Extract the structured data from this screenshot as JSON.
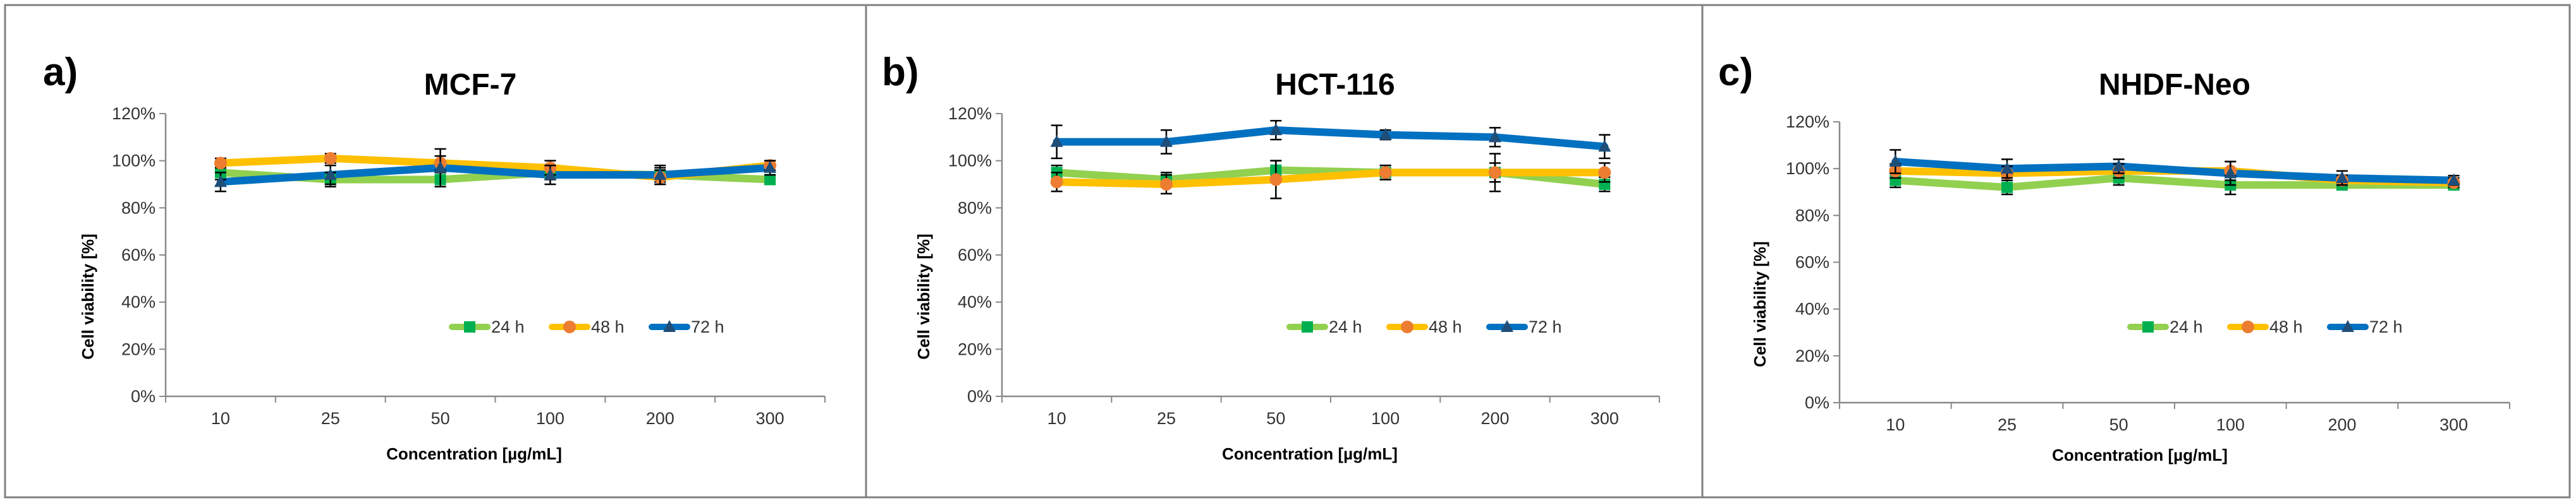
{
  "colors": {
    "24 h": "#92D050",
    "48 h": "#FFC000",
    "72 h": "#0070C0",
    "marker_24 h": "#00B050",
    "marker_48 h": "#ED7D31",
    "marker_72 h": "#1F4E79"
  },
  "chart_data": [
    {
      "panel": "a)",
      "type": "line",
      "title": "MCF-7",
      "xlabel": "Concentration [µg/mL]",
      "ylabel": "Cell viability [%]",
      "categories": [
        "10",
        "25",
        "50",
        "100",
        "200",
        "300"
      ],
      "ylim": [
        0,
        120
      ],
      "yticks": [
        0,
        20,
        40,
        60,
        80,
        100,
        120
      ],
      "ytick_labels": [
        "0%",
        "20%",
        "40%",
        "60%",
        "80%",
        "100%",
        "120%"
      ],
      "grid": false,
      "legend": "bottom-right",
      "series": [
        {
          "name": "24 h",
          "marker": "square",
          "values": [
            95,
            92,
            92,
            95,
            94,
            92
          ],
          "errors": [
            3,
            3,
            3,
            3,
            3,
            2
          ]
        },
        {
          "name": "48 h",
          "marker": "circle",
          "values": [
            99,
            101,
            99,
            97,
            93,
            98
          ],
          "errors": [
            2,
            2,
            3,
            3,
            3,
            2
          ]
        },
        {
          "name": "72 h",
          "marker": "triangle",
          "values": [
            91,
            94,
            97,
            94,
            94,
            97
          ],
          "errors": [
            4,
            4,
            8,
            4,
            4,
            3
          ]
        }
      ]
    },
    {
      "panel": "b)",
      "type": "line",
      "title": "HCT-116",
      "xlabel": "Concentration [µg/mL]",
      "ylabel": "Cell viability [%]",
      "categories": [
        "10",
        "25",
        "50",
        "100",
        "200",
        "300"
      ],
      "ylim": [
        0,
        120
      ],
      "yticks": [
        0,
        20,
        40,
        60,
        80,
        100,
        120
      ],
      "ytick_labels": [
        "0%",
        "20%",
        "40%",
        "60%",
        "80%",
        "100%",
        "120%"
      ],
      "grid": false,
      "legend": "bottom-right",
      "series": [
        {
          "name": "24 h",
          "marker": "square",
          "values": [
            95,
            92,
            96,
            95,
            95,
            90
          ],
          "errors": [
            3,
            3,
            4,
            3,
            4,
            3
          ]
        },
        {
          "name": "48 h",
          "marker": "circle",
          "values": [
            91,
            90,
            92,
            95,
            95,
            95
          ],
          "errors": [
            4,
            4,
            8,
            3,
            8,
            4
          ]
        },
        {
          "name": "72 h",
          "marker": "triangle",
          "values": [
            108,
            108,
            113,
            111,
            110,
            106
          ],
          "errors": [
            7,
            5,
            4,
            2,
            4,
            5
          ]
        }
      ]
    },
    {
      "panel": "c)",
      "type": "line",
      "title": "NHDF-Neo",
      "xlabel": "Concentration [µg/mL]",
      "ylabel": "Cell viability [%]",
      "categories": [
        "10",
        "25",
        "50",
        "100",
        "200",
        "300"
      ],
      "ylim": [
        0,
        120
      ],
      "yticks": [
        0,
        20,
        40,
        60,
        80,
        100,
        120
      ],
      "ytick_labels": [
        "0%",
        "20%",
        "40%",
        "60%",
        "80%",
        "100%",
        "120%"
      ],
      "grid": false,
      "legend": "bottom-right",
      "series": [
        {
          "name": "24 h",
          "marker": "square",
          "values": [
            95,
            92,
            96,
            93,
            93,
            93
          ],
          "errors": [
            3,
            3,
            3,
            4,
            2,
            2
          ]
        },
        {
          "name": "48 h",
          "marker": "circle",
          "values": [
            99,
            98,
            99,
            99,
            95,
            94
          ],
          "errors": [
            3,
            3,
            3,
            4,
            2,
            2
          ]
        },
        {
          "name": "72 h",
          "marker": "triangle",
          "values": [
            103,
            100,
            101,
            98,
            96,
            95
          ],
          "errors": [
            5,
            4,
            3,
            5,
            3,
            2
          ]
        }
      ]
    }
  ]
}
